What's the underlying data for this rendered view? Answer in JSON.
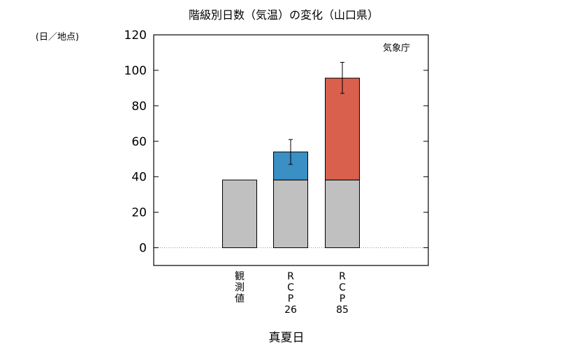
{
  "chart_data": {
    "type": "bar",
    "stacked": true,
    "title": "階級別日数（気温）の変化（山口県）",
    "ylabel": "(日／地点)",
    "xlabel": "真夏日",
    "source": "気象庁",
    "ylim": [
      -10,
      120
    ],
    "yticks": [
      0,
      20,
      40,
      60,
      80,
      100,
      120
    ],
    "grid": false,
    "categories": [
      {
        "lines": [
          "観",
          "測",
          "値"
        ]
      },
      {
        "lines": [
          "R",
          "C",
          "P",
          "26"
        ]
      },
      {
        "lines": [
          "R",
          "C",
          "P",
          "85"
        ]
      }
    ],
    "series": [
      {
        "values": [
          38.2,
          38.2,
          38.2
        ],
        "color": "#c0c0c0"
      },
      {
        "values": [
          0,
          15.8,
          57.4
        ],
        "color": "#3a8fc4",
        "color_alt": "#d9604c"
      }
    ],
    "error_bars": [
      null,
      {
        "low": 47,
        "high": 61
      },
      {
        "low": 87,
        "high": 104.5
      }
    ],
    "zero_line": true
  }
}
